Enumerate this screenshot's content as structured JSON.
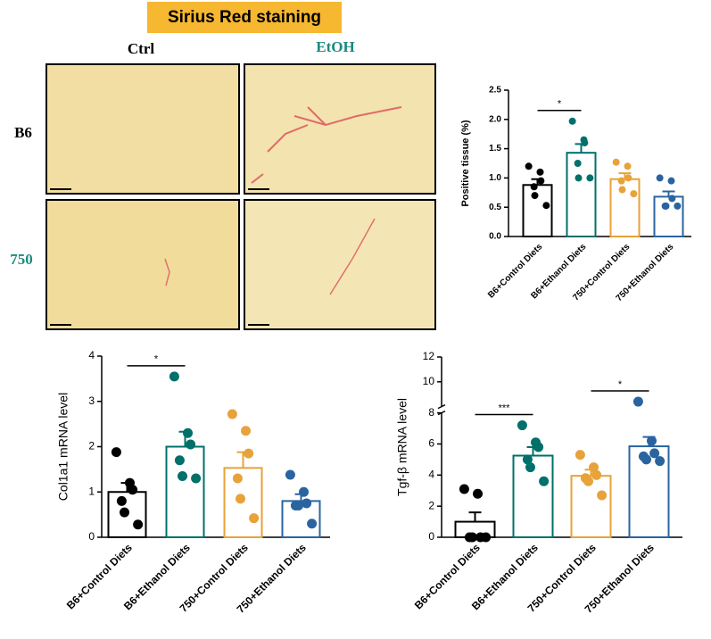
{
  "figure": {
    "title": "Sirius Red staining",
    "columns": [
      "Ctrl",
      "EtOH"
    ],
    "rows": [
      "B6",
      "750"
    ]
  },
  "chart_data": [
    {
      "type": "bar",
      "ylabel": "Positive tissue (%)",
      "categories": [
        "B6+Control Diets",
        "B6+Ethanol Diets",
        "750+Control Diets",
        "750+Ethanol Diets"
      ],
      "colors": [
        "#000000",
        "#00706a",
        "#e8a23a",
        "#2a64a0"
      ],
      "values": [
        0.88,
        1.43,
        0.98,
        0.68
      ],
      "errors": [
        0.1,
        0.15,
        0.1,
        0.09
      ],
      "points": [
        [
          1.2,
          1.1,
          0.95,
          0.85,
          0.7,
          0.53
        ],
        [
          1.97,
          1.65,
          1.6,
          1.25,
          1.0,
          1.0
        ],
        [
          1.27,
          1.2,
          1.0,
          0.95,
          0.8,
          0.73
        ],
        [
          1.0,
          0.95,
          0.65,
          0.52,
          0.52,
          0.52
        ]
      ],
      "significance": [
        "*",
        null,
        null
      ],
      "ylim": [
        0,
        2.5
      ],
      "yticks": [
        {
          "value": 0,
          "label": "0.0"
        },
        0.5,
        {
          "value": 1,
          "label": "1.0"
        },
        1.5,
        {
          "value": 2,
          "label": "2.0"
        },
        2.5
      ]
    },
    {
      "type": "bar",
      "ylabel": "Col1a1 mRNA level",
      "categories": [
        "B6+Control Diets",
        "B6+Ethanol Diets",
        "750+Control Diets",
        "750+Ethanol Diets"
      ],
      "colors": [
        "#000000",
        "#00706a",
        "#e8a23a",
        "#2a64a0"
      ],
      "values": [
        1.0,
        2.0,
        1.53,
        0.8
      ],
      "errors": [
        0.2,
        0.33,
        0.35,
        0.15
      ],
      "points": [
        [
          1.88,
          1.2,
          1.05,
          0.8,
          0.55,
          0.28
        ],
        [
          3.55,
          2.3,
          2.05,
          1.7,
          1.35,
          1.3
        ],
        [
          2.72,
          2.35,
          1.85,
          1.3,
          0.85,
          0.42
        ],
        [
          1.38,
          1.0,
          0.75,
          0.7,
          0.7,
          0.3
        ]
      ],
      "significance": [
        "*",
        null,
        null
      ],
      "ylim": [
        0,
        4
      ],
      "yticks": [
        0,
        1,
        2,
        3,
        4
      ]
    },
    {
      "type": "bar",
      "ylabel": "Tgf-β mRNA level",
      "categories": [
        "B6+Control Diets",
        "B6+Ethanol Diets",
        "750+Control Diets",
        "750+Ethanol Diets"
      ],
      "colors": [
        "#000000",
        "#00706a",
        "#e8a23a",
        "#2a64a0"
      ],
      "values": [
        1.0,
        5.25,
        3.95,
        5.85
      ],
      "errors": [
        0.6,
        0.55,
        0.4,
        0.6
      ],
      "points": [
        [
          3.1,
          2.8,
          0,
          0,
          0,
          0
        ],
        [
          7.2,
          6.1,
          5.8,
          5.0,
          4.5,
          3.6
        ],
        [
          5.3,
          4.5,
          4.0,
          3.8,
          3.6,
          2.7
        ],
        [
          8.4,
          6.2,
          5.4,
          5.2,
          5.0,
          4.9
        ]
      ],
      "significance": [
        "***",
        null,
        "*"
      ],
      "ylim": [
        0,
        12
      ],
      "ybreak": 8,
      "yticks": [
        0,
        2,
        4,
        6,
        8,
        10,
        12
      ]
    }
  ]
}
